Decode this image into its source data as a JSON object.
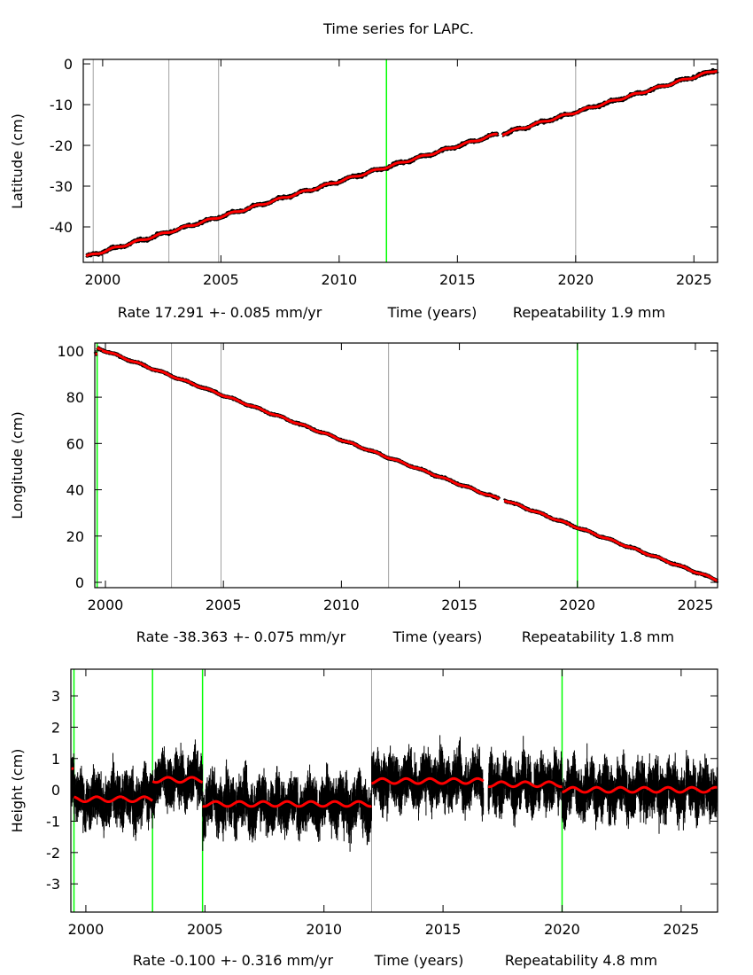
{
  "title": "Time series for LAPC.",
  "colors": {
    "data": "#000000",
    "fit": "#ff0000",
    "break_major": "#00ff00",
    "break_minor": "#a0a0a0",
    "frame": "#000000"
  },
  "chart_data": [
    {
      "type": "line",
      "ylabel": "Latitude (cm)",
      "xlabel": "Time (years)",
      "rate_text": "Rate 17.291 +- 0.085 mm/yr",
      "repeat_text": "Repeatability 1.9 mm",
      "xlim": [
        1999.18,
        2026.0
      ],
      "ylim": [
        -48.7,
        1.1
      ],
      "xticks": [
        "2000",
        "2005",
        "2010",
        "2015",
        "2020",
        "2025"
      ],
      "yticks": [
        "0",
        "-10",
        "-20",
        "-30",
        "-40"
      ],
      "breaks": [
        {
          "year": 1999.6,
          "kind": "minor"
        },
        {
          "year": 2002.8,
          "kind": "minor"
        },
        {
          "year": 2004.9,
          "kind": "minor"
        },
        {
          "year": 2012.0,
          "kind": "major"
        },
        {
          "year": 2020.0,
          "kind": "minor"
        }
      ],
      "segments": [
        {
          "start": 1999.3,
          "end": 2016.7,
          "value_at_start": -47.3,
          "rate_cm_per_yr": 1.7291
        },
        {
          "start": 2016.9,
          "end": 2026.0,
          "value_at_start": -17.2,
          "rate_cm_per_yr": 1.7291
        }
      ],
      "seasonal_amplitude": 0.25,
      "noise_cm": 0.19
    },
    {
      "type": "line",
      "ylabel": "Longitude (cm)",
      "xlabel": "Time (years)",
      "rate_text": "Rate -38.363 +- 0.075 mm/yr",
      "repeat_text": "Repeatability 1.8 mm",
      "xlim": [
        1999.55,
        2025.94
      ],
      "ylim": [
        -2.3,
        103.4
      ],
      "xticks": [
        "2000",
        "2005",
        "2010",
        "2015",
        "2020",
        "2025"
      ],
      "yticks": [
        "100",
        "80",
        "60",
        "40",
        "20",
        "0"
      ],
      "breaks": [
        {
          "year": 1999.65,
          "kind": "major"
        },
        {
          "year": 2002.8,
          "kind": "minor"
        },
        {
          "year": 2004.9,
          "kind": "minor"
        },
        {
          "year": 2012.0,
          "kind": "minor"
        },
        {
          "year": 2020.0,
          "kind": "major"
        }
      ],
      "segments": [
        {
          "start": 1999.55,
          "end": 1999.65,
          "value_at_start": 98.5,
          "rate_cm_per_yr": 0
        },
        {
          "start": 1999.65,
          "end": 2016.7,
          "value_at_start": 101.3,
          "rate_cm_per_yr": -3.8363
        },
        {
          "start": 2016.9,
          "end": 2025.94,
          "value_at_start": 35.6,
          "rate_cm_per_yr": -3.8363
        }
      ],
      "seasonal_amplitude": 0.3,
      "noise_cm": 0.18
    },
    {
      "type": "scatter",
      "ylabel": "Height (cm)",
      "xlabel": "Time (years)",
      "rate_text": "Rate -0.100 +- 0.316 mm/yr",
      "repeat_text": "Repeatability 4.8 mm",
      "xlim": [
        1999.37,
        2026.53
      ],
      "ylim": [
        -3.9,
        3.85
      ],
      "xticks": [
        "2000",
        "2005",
        "2010",
        "2015",
        "2020",
        "2025"
      ],
      "yticks": [
        "3",
        "2",
        "1",
        "0",
        "-1",
        "-2",
        "-3"
      ],
      "breaks": [
        {
          "year": 1999.5,
          "kind": "major"
        },
        {
          "year": 2002.8,
          "kind": "major"
        },
        {
          "year": 2004.9,
          "kind": "major"
        },
        {
          "year": 2012.0,
          "kind": "minor"
        },
        {
          "year": 2020.0,
          "kind": "major"
        }
      ],
      "segments": [
        {
          "start": 1999.37,
          "end": 1999.5,
          "value_at_start": 0.6,
          "rate_cm_per_yr": 0
        },
        {
          "start": 1999.5,
          "end": 2002.8,
          "value_at_start": -0.3,
          "rate_cm_per_yr": 0
        },
        {
          "start": 2002.8,
          "end": 2004.9,
          "value_at_start": 0.32,
          "rate_cm_per_yr": 0
        },
        {
          "start": 2004.9,
          "end": 2012.0,
          "value_at_start": -0.45,
          "rate_cm_per_yr": 0
        },
        {
          "start": 2012.0,
          "end": 2016.7,
          "value_at_start": 0.28,
          "rate_cm_per_yr": 0
        },
        {
          "start": 2016.9,
          "end": 2020.0,
          "value_at_start": 0.18,
          "rate_cm_per_yr": 0
        },
        {
          "start": 2020.0,
          "end": 2026.53,
          "value_at_start": 0.0,
          "rate_cm_per_yr": 0.0
        }
      ],
      "seasonal_amplitude": 0.08,
      "noise_cm": 0.48,
      "error_bar_cm": 0.35
    }
  ]
}
